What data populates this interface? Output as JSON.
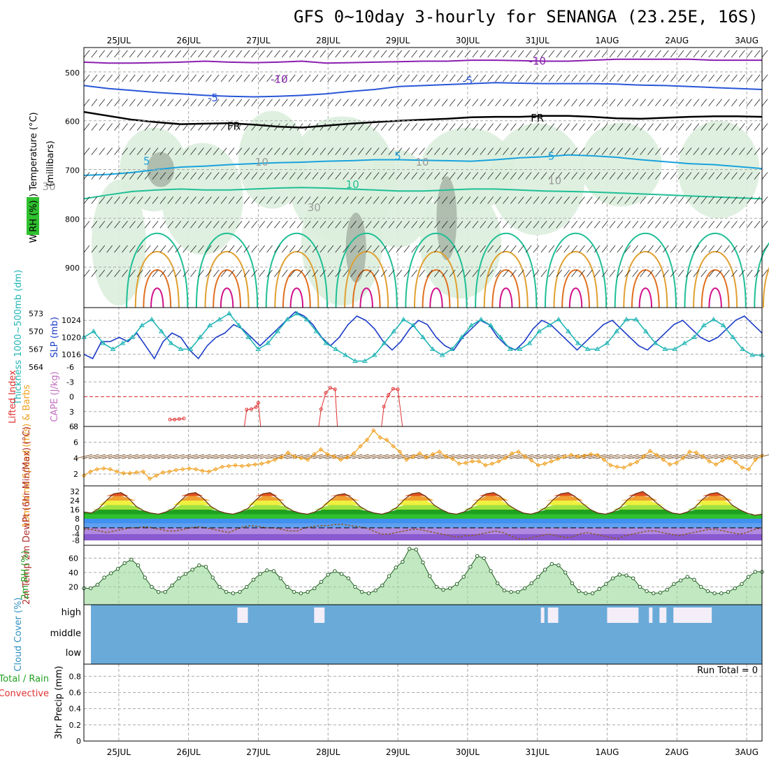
{
  "title": "GFS 0~10day 3-hourly for SENANGA (23.25E, 16S)",
  "dates": [
    "25JUL",
    "26JUL",
    "27JUL",
    "28JUL",
    "29JUL",
    "30JUL",
    "31JUL",
    "1AUG",
    "2AUG",
    "3AUG"
  ],
  "colors": {
    "temp_minus10": "#8a1fb0",
    "temp_minus5": "#2a56d6",
    "temp_fr": "#000000",
    "temp_5": "#19a2dc",
    "temp_10": "#1fbf95",
    "temp_15": "#e0a030",
    "temp_20": "#e07020",
    "temp_25": "#d0108a",
    "rh_fill": "#dceedd",
    "slp": "#1c3cc8",
    "thick": "#22b5b5",
    "li": "#e03030",
    "wind10": "#f0a020",
    "barb": "#7a4a20",
    "cloud": "#6aaad8",
    "rh2m": "#55c055"
  },
  "chart_data": [
    {
      "type": "contour",
      "panel": "upper-air",
      "ylabel_parts": [
        "Wind (m/s)",
        "Temperature (°C)",
        "RH (%)",
        "(millibars)"
      ],
      "yticks": [
        500,
        600,
        700,
        800,
        900
      ],
      "ylim": [
        1000,
        450
      ],
      "contour_labels": [
        {
          "text": "-10",
          "t": 7.0,
          "p": 485,
          "series": "temp_minus10"
        },
        {
          "text": "-10",
          "t": 3.3,
          "p": 522,
          "series": "temp_minus10"
        },
        {
          "text": "-5",
          "t": 6.0,
          "p": 525,
          "series": "temp_minus5"
        },
        {
          "text": "-5",
          "t": 2.35,
          "p": 560,
          "series": "temp_minus5"
        },
        {
          "text": "FR",
          "t": 7.0,
          "p": 602,
          "series": "temp_fr"
        },
        {
          "text": "FR",
          "t": 2.65,
          "p": 618,
          "series": "temp_fr"
        },
        {
          "text": "5",
          "t": 7.2,
          "p": 680,
          "series": "temp_5"
        },
        {
          "text": "5",
          "t": 5.0,
          "p": 680,
          "series": "temp_5"
        },
        {
          "text": "5",
          "t": 1.4,
          "p": 690,
          "series": "temp_5"
        },
        {
          "text": "10",
          "t": 4.35,
          "p": 738,
          "series": "temp_10"
        },
        {
          "text": "10",
          "t": 3.05,
          "p": 692,
          "series": "rh_label"
        },
        {
          "text": "10",
          "t": 5.35,
          "p": 692,
          "series": "rh_label"
        },
        {
          "text": "10",
          "t": 7.25,
          "p": 730,
          "series": "rh_label"
        },
        {
          "text": "30",
          "t": 0.0,
          "p": 742,
          "series": "rh_label"
        },
        {
          "text": "30",
          "t": 3.8,
          "p": 785,
          "series": "rh_label"
        }
      ],
      "isotherms": [
        {
          "name": "temp_minus10",
          "values": [
            480,
            482,
            482,
            481,
            480,
            478,
            480,
            481,
            480,
            478,
            482,
            481,
            480,
            479,
            478,
            478,
            476,
            476,
            477,
            478,
            478,
            476,
            474,
            474,
            474,
            474,
            476,
            476,
            476
          ]
        },
        {
          "name": "temp_minus5",
          "values": [
            528,
            534,
            538,
            542,
            545,
            548,
            550,
            551,
            550,
            548,
            545,
            540,
            536,
            530,
            528,
            526,
            524,
            522,
            523,
            524,
            524,
            524,
            525,
            527,
            528,
            530,
            532,
            534,
            536
          ]
        },
        {
          "name": "temp_fr",
          "values": [
            582,
            590,
            598,
            603,
            607,
            606,
            605,
            608,
            612,
            614,
            610,
            606,
            603,
            600,
            598,
            596,
            593,
            592,
            592,
            590,
            590,
            592,
            595,
            596,
            594,
            592,
            591,
            591,
            592
          ]
        },
        {
          "name": "temp_5",
          "values": [
            712,
            710,
            706,
            700,
            695,
            693,
            690,
            688,
            686,
            685,
            683,
            682,
            680,
            680,
            681,
            682,
            683,
            680,
            676,
            674,
            670,
            672,
            675,
            680,
            684,
            688,
            690,
            694,
            698
          ]
        },
        {
          "name": "temp_10",
          "values": [
            760,
            752,
            745,
            742,
            740,
            742,
            742,
            740,
            738,
            737,
            738,
            740,
            742,
            744,
            744,
            742,
            740,
            740,
            742,
            744,
            745,
            746,
            748,
            750,
            752,
            754,
            756,
            758,
            760
          ]
        }
      ]
    },
    {
      "type": "line",
      "panel": "slp-thickness",
      "ylabel_left": "Thickness 1000~500mb (dm)",
      "ylabel_right": "SLP (mb)",
      "yticks_left": [
        564,
        567,
        570,
        573
      ],
      "yticks_right": [
        1016,
        1020,
        1024
      ],
      "series": [
        {
          "name": "SLP (mb)",
          "axis": "right",
          "values": [
            1016,
            1015,
            1019,
            1019,
            1020,
            1019,
            1021,
            1018,
            1015,
            1019,
            1021,
            1020,
            1017,
            1015,
            1018,
            1020,
            1021,
            1023,
            1022,
            1020,
            1018,
            1020,
            1022,
            1024,
            1026,
            1025,
            1023,
            1020,
            1018,
            1020,
            1023,
            1025,
            1024,
            1022,
            1019,
            1017,
            1019,
            1022,
            1024,
            1023,
            1020,
            1018,
            1017,
            1020,
            1022,
            1024,
            1023,
            1020,
            1018,
            1017,
            1019,
            1022,
            1024,
            1023,
            1021,
            1019,
            1017,
            1019,
            1021,
            1023,
            1024,
            1022,
            1020,
            1018,
            1017,
            1019,
            1021,
            1023,
            1024,
            1022,
            1020,
            1019,
            1020,
            1022,
            1024,
            1025,
            1023,
            1021
          ]
        },
        {
          "name": "Thickness (dm)",
          "axis": "left",
          "values": [
            569,
            570,
            568,
            567,
            568,
            569,
            571,
            572,
            570,
            568,
            567,
            567,
            569,
            571,
            572,
            573,
            571,
            569,
            567,
            568,
            570,
            572,
            573,
            572,
            570,
            568,
            567,
            566,
            565,
            565,
            566,
            568,
            570,
            572,
            571,
            569,
            567,
            566,
            567,
            569,
            571,
            572,
            571,
            569,
            567,
            567,
            568,
            570,
            571,
            572,
            570,
            568,
            567,
            567,
            568,
            570,
            572,
            572,
            570,
            568,
            567,
            567,
            568,
            569,
            571,
            572,
            571,
            569,
            567,
            566,
            566
          ]
        }
      ]
    },
    {
      "type": "line",
      "panel": "lifted-index",
      "ylabel_left": "Lifted Index",
      "ylabel_right": "CAPE (J/kg)",
      "yticks": [
        6,
        3,
        0,
        -3,
        -6
      ],
      "segments": [
        {
          "x": [
            2.8,
            3.0,
            3.2,
            3.4
          ],
          "y": [
            4.6,
            4.6,
            4.5,
            4.4
          ]
        },
        {
          "x": [
            6.0,
            6.1,
            6.3,
            6.5,
            6.6,
            6.7
          ],
          "y": [
            6,
            2.6,
            2.5,
            2.1,
            1.2,
            6
          ]
        },
        {
          "x": [
            9.2,
            9.3,
            9.5,
            9.7,
            9.9,
            10.0
          ],
          "y": [
            6,
            2.5,
            -0.8,
            -1.8,
            -1.5,
            6
          ]
        },
        {
          "x": [
            11.9,
            12.0,
            12.2,
            12.4,
            12.6,
            12.8
          ],
          "y": [
            6,
            2.0,
            -0.4,
            -1.6,
            -1.5,
            6
          ]
        }
      ]
    },
    {
      "type": "line",
      "panel": "wind10m",
      "ylabel": "10m Wind Speed (m/s) & Barbs",
      "yticks": [
        2,
        4,
        6,
        8
      ],
      "values": [
        1.8,
        2.3,
        2.6,
        2.7,
        2.6,
        2.3,
        2.1,
        2.1,
        2.2,
        2.3,
        1.4,
        1.8,
        2.2,
        2.3,
        2.5,
        2.6,
        2.7,
        2.6,
        2.4,
        2.3,
        2.6,
        2.9,
        3.0,
        3.1,
        3.0,
        3.1,
        3.2,
        3.3,
        3.5,
        3.8,
        4.1,
        4.7,
        4.2,
        4.0,
        3.8,
        4.5,
        5.1,
        4.5,
        4.2,
        3.8,
        4.1,
        4.6,
        5.5,
        6.3,
        7.5,
        6.6,
        6.3,
        5.5,
        4.8,
        3.8,
        4.2,
        4.6,
        4.1,
        4.5,
        4.8,
        4.2,
        3.9,
        3.3,
        3.4,
        3.6,
        3.6,
        3.1,
        3.3,
        3.6,
        4.0,
        4.6,
        4.8,
        4.2,
        3.7,
        3.1,
        3.3,
        3.6,
        3.9,
        4.2,
        4.4,
        4.2,
        4.3,
        4.5,
        4.4,
        3.8,
        3.1,
        2.9,
        2.8,
        3.2,
        3.5,
        4.2,
        4.9,
        4.4,
        3.8,
        3.2,
        3.4,
        4.0,
        4.8,
        4.7,
        4.2,
        3.6,
        3.2,
        3.7,
        4.0,
        3.5,
        2.8,
        2.6,
        3.8,
        4.3
      ]
    },
    {
      "type": "area",
      "panel": "temp2m",
      "ylabel": "2m Temp 2m DewPt (6hr Min/Max) (°C)",
      "yticks": [
        -8,
        -4,
        0,
        8,
        16,
        24,
        32
      ],
      "temp": [
        14,
        13,
        17,
        24,
        30,
        31,
        26,
        19,
        15,
        13,
        12,
        14,
        17,
        24,
        30,
        31,
        26,
        19,
        15,
        13,
        12,
        14,
        17,
        24,
        30,
        31,
        26,
        19,
        15,
        13,
        12,
        14,
        18,
        24,
        29,
        30,
        26,
        19,
        15,
        13,
        12,
        14,
        18,
        25,
        30,
        31,
        27,
        20,
        16,
        13,
        12,
        14,
        18,
        25,
        30,
        31,
        27,
        20,
        16,
        13,
        12,
        14,
        18,
        25,
        30,
        31,
        27,
        21,
        16,
        13,
        12,
        14,
        18,
        25,
        30,
        32,
        27,
        21,
        16,
        13,
        12,
        14,
        18,
        25,
        30,
        31,
        27,
        20,
        16,
        13,
        11,
        12
      ],
      "dewpt": [
        -1,
        -1,
        -2,
        -3,
        -2,
        -1,
        0,
        0,
        1,
        0,
        -1,
        -2,
        -2,
        -1,
        0,
        1,
        0,
        -1,
        -2,
        -3,
        -1,
        1,
        2,
        1,
        0,
        0,
        -1,
        -2,
        -2,
        0,
        1,
        2,
        2,
        3,
        3,
        2,
        1,
        0,
        -2,
        -4,
        -4,
        -3,
        -2,
        -1,
        -1,
        -2,
        -3,
        -4,
        -5,
        -6,
        -5,
        -5,
        -4,
        -3,
        -2,
        -3,
        -5,
        -7,
        -7,
        -6,
        -5,
        -4,
        -5,
        -6,
        -6,
        -4,
        -3,
        -4,
        -5,
        -6,
        -7,
        -5,
        -4,
        -3,
        -2,
        -2,
        -3,
        -4,
        -5,
        -4,
        -3,
        -2,
        -1,
        -1,
        -2,
        -3,
        -4,
        -3,
        -1,
        0
      ]
    },
    {
      "type": "area",
      "panel": "rh2m",
      "ylabel": "2m RH (%)",
      "yticks": [
        20,
        40,
        60
      ],
      "values": [
        18,
        18,
        23,
        33,
        39,
        45,
        53,
        58,
        50,
        33,
        20,
        13,
        13,
        22,
        32,
        38,
        44,
        50,
        48,
        33,
        20,
        13,
        11,
        13,
        20,
        30,
        38,
        43,
        42,
        32,
        20,
        13,
        11,
        13,
        18,
        27,
        37,
        42,
        38,
        32,
        20,
        13,
        11,
        15,
        22,
        35,
        47,
        55,
        73,
        72,
        54,
        35,
        20,
        16,
        18,
        24,
        34,
        48,
        63,
        60,
        42,
        25,
        15,
        13,
        13,
        18,
        25,
        34,
        44,
        52,
        50,
        40,
        25,
        14,
        11,
        11,
        17,
        24,
        32,
        37,
        36,
        32,
        20,
        14,
        11,
        12,
        16,
        24,
        29,
        34,
        30,
        20,
        14,
        11,
        11,
        13,
        18,
        24,
        34,
        41,
        41
      ]
    },
    {
      "type": "heatmap",
      "panel": "cloud",
      "ylabel": "Cloud Cover (%)",
      "yticks": [
        "high",
        "middle",
        "low"
      ],
      "gaps_high": [
        [
          2.7,
          2.85
        ],
        [
          3.8,
          3.95
        ],
        [
          7.05,
          7.1
        ],
        [
          7.15,
          7.3
        ],
        [
          8.0,
          8.45
        ],
        [
          8.6,
          8.65
        ],
        [
          8.75,
          8.85
        ],
        [
          8.95,
          9.5
        ]
      ]
    },
    {
      "type": "bar",
      "panel": "precip",
      "ylabel_parts": [
        "3hr Precip (mm)",
        "Total / Rain",
        "Convective"
      ],
      "yticks": [
        0,
        0.2,
        0.4,
        0.6,
        0.8
      ],
      "run_total_label": "Run Total = 0",
      "values": []
    }
  ]
}
